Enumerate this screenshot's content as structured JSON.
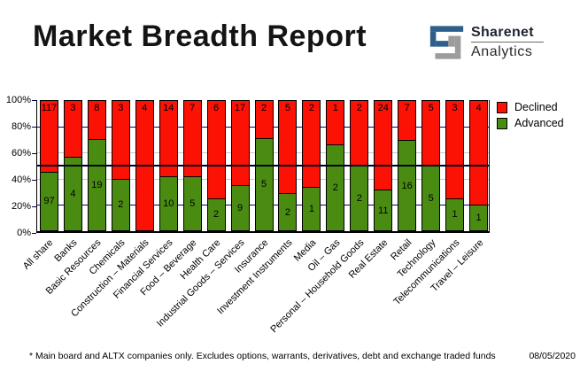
{
  "header": {
    "title": "Market Breadth Report",
    "logo": {
      "brand_top": "Sharenet",
      "brand_bottom": "Analytics",
      "blue": "#2d5f8a",
      "gray": "#9c9c9c"
    }
  },
  "chart_data": {
    "type": "bar",
    "stacked": true,
    "stack_mode": "percent",
    "title": "Market Breadth Report",
    "categories": [
      "All share",
      "Banks",
      "Basic Resources",
      "Chemicals",
      "Construction – Materials",
      "Financial Services",
      "Food – Beverage",
      "Health Care",
      "Industrial Goods – Services",
      "Insurance",
      "Investment Instruments",
      "Media",
      "Oil – Gas",
      "Personal – Household Goods",
      "Real Estate",
      "Retail",
      "Technology",
      "Telecommunications",
      "Travel – Leisure"
    ],
    "series": [
      {
        "name": "Declined",
        "color": "#fb1205",
        "values": [
          117,
          3,
          8,
          3,
          4,
          14,
          7,
          6,
          17,
          2,
          5,
          2,
          1,
          2,
          24,
          7,
          5,
          3,
          4
        ]
      },
      {
        "name": "Advanced",
        "color": "#4a8c12",
        "values": [
          97,
          4,
          19,
          2,
          0,
          10,
          5,
          2,
          9,
          5,
          2,
          1,
          2,
          2,
          11,
          16,
          5,
          1,
          1
        ]
      }
    ],
    "y_ticks": [
      "100%",
      "80%",
      "60%",
      "40%",
      "20%",
      "0%"
    ],
    "ylim": [
      0,
      100
    ],
    "ylabel": "",
    "xlabel": "",
    "reference_line_pct": 50,
    "gridlines": {
      "navy_pct": [
        80,
        20
      ],
      "silver_pct": [
        60,
        40
      ]
    },
    "legend_position": "top-right"
  },
  "legend": {
    "items": [
      {
        "label": "Declined",
        "color": "#fb1205"
      },
      {
        "label": "Advanced",
        "color": "#4a8c12"
      }
    ]
  },
  "footer": {
    "note": "* Main board and ALTX companies only. Excludes options, warrants, derivatives, debt and exchange traded funds",
    "date": "08/05/2020"
  }
}
